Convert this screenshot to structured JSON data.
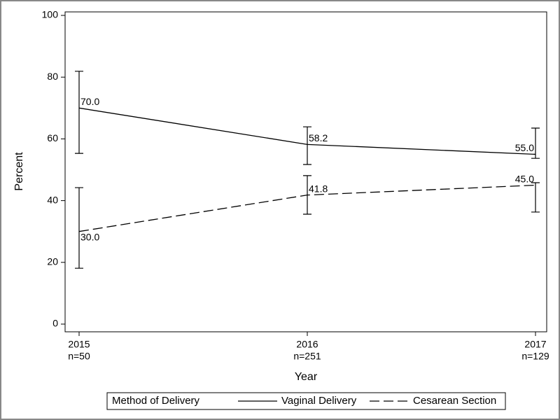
{
  "chart_data": {
    "type": "line",
    "categories": [
      "2015",
      "2016",
      "2017"
    ],
    "category_sublabels": [
      "n=50",
      "n=251",
      "n=129"
    ],
    "x_label": "Year",
    "y_label": "Percent",
    "ylim": [
      0,
      100
    ],
    "yticks": [
      0,
      20,
      40,
      60,
      80,
      100
    ],
    "legend_title": "Method of Delivery",
    "legend_position": "bottom",
    "series": [
      {
        "name": "Vaginal Delivery",
        "color": "#000000",
        "dash": false,
        "values": [
          70,
          58.2,
          55
        ],
        "value_labels": [
          "70.0",
          "58.2",
          "55.0"
        ],
        "lower": [
          55.3,
          51.7,
          53.7
        ],
        "upper": [
          81.9,
          63.9,
          63.5
        ]
      },
      {
        "name": "Cesarean Section",
        "color": "#000000",
        "dash": true,
        "values": [
          30,
          41.8,
          45
        ],
        "value_labels": [
          "30.0",
          "41.8",
          "45.0"
        ],
        "lower": [
          18.1,
          35.6,
          36.3
        ],
        "upper": [
          44.2,
          48.1,
          45.8
        ]
      }
    ]
  }
}
